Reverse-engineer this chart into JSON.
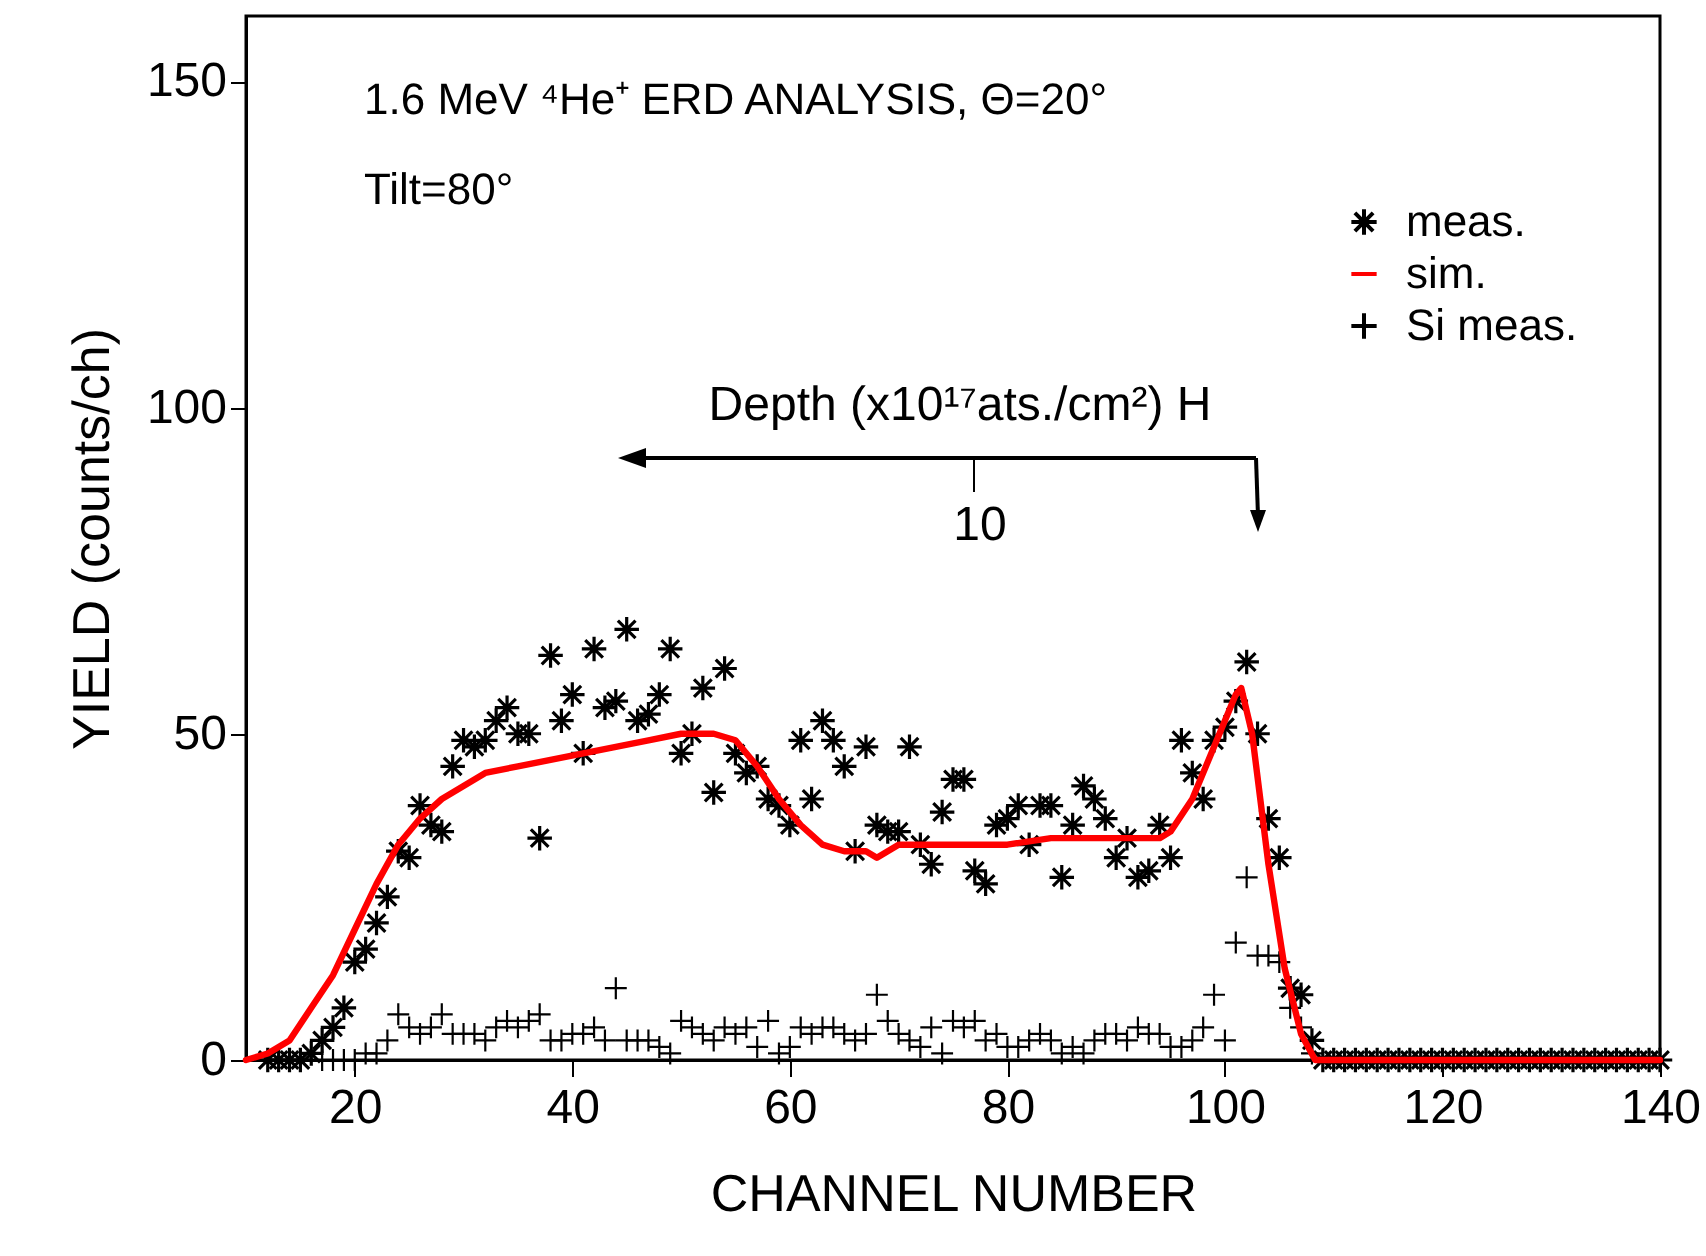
{
  "chart_data": {
    "type": "scatter",
    "xlabel": "CHANNEL NUMBER",
    "ylabel": "YIELD (counts/ch)",
    "annotations": [
      "1.6 MeV ⁴He⁺ ERD ANALYSIS,  Θ=20°",
      "Tilt=80°",
      "Depth (x10¹⁷ats./cm²) H",
      "10"
    ],
    "xlim": [
      10,
      140
    ],
    "xticks": [
      20,
      40,
      60,
      80,
      100,
      120,
      140
    ],
    "ylim": [
      0,
      160
    ],
    "yticks": [
      0,
      50,
      100,
      150
    ],
    "grid": false,
    "legend": "top right",
    "x": [
      12,
      13,
      14,
      15,
      16,
      17,
      18,
      19,
      20,
      21,
      22,
      23,
      24,
      25,
      26,
      27,
      28,
      29,
      30,
      31,
      32,
      33,
      34,
      35,
      36,
      37,
      38,
      39,
      40,
      41,
      42,
      43,
      44,
      45,
      46,
      47,
      48,
      49,
      50,
      51,
      52,
      53,
      54,
      55,
      56,
      57,
      58,
      59,
      60,
      61,
      62,
      63,
      64,
      65,
      66,
      67,
      68,
      69,
      70,
      71,
      72,
      73,
      74,
      75,
      76,
      77,
      78,
      79,
      80,
      81,
      82,
      83,
      84,
      85,
      86,
      87,
      88,
      89,
      90,
      91,
      92,
      93,
      94,
      95,
      96,
      97,
      98,
      99,
      100,
      101,
      102,
      103,
      104,
      105,
      106,
      107,
      108,
      109,
      110,
      111,
      112,
      113,
      114,
      115,
      116,
      117,
      118,
      119,
      120,
      121,
      122,
      123,
      124,
      125,
      126,
      127,
      128,
      129,
      130,
      131,
      132,
      133,
      134,
      135,
      136,
      137,
      138,
      139,
      140
    ],
    "series": [
      {
        "name": "meas.",
        "type": "scatter",
        "marker": "cross",
        "color": "#000000",
        "values": [
          0,
          0,
          0,
          0,
          1,
          3,
          5,
          8,
          15,
          17,
          21,
          25,
          32,
          31,
          39,
          36,
          35,
          45,
          49,
          48,
          49,
          52,
          54,
          50,
          50,
          34,
          62,
          52,
          56,
          47,
          63,
          54,
          55,
          66,
          52,
          53,
          56,
          63,
          47,
          50,
          57,
          41,
          60,
          47,
          44,
          45,
          40,
          39,
          36,
          49,
          40,
          52,
          49,
          45,
          32,
          48,
          36,
          35,
          35,
          48,
          33,
          30,
          38,
          43,
          43,
          29,
          27,
          36,
          37,
          39,
          33,
          39,
          39,
          28,
          36,
          42,
          40,
          37,
          31,
          34,
          28,
          29,
          36,
          31,
          49,
          44,
          40,
          49,
          51,
          55,
          61,
          50,
          37,
          31,
          11,
          10,
          3,
          0,
          0,
          0,
          0,
          0,
          0,
          0,
          0,
          0,
          0,
          0,
          0,
          0,
          0,
          0,
          0,
          0,
          0,
          0,
          0,
          0,
          0,
          0,
          0,
          0,
          0,
          0,
          0,
          0,
          0,
          0,
          0
        ]
      },
      {
        "name": "sim.",
        "type": "line",
        "color": "#ff0000",
        "x": [
          10,
          12,
          14,
          16,
          18,
          20,
          22,
          24,
          26,
          28,
          30,
          32,
          35,
          38,
          41,
          44,
          47,
          50,
          53,
          55,
          57,
          59,
          61,
          63,
          65,
          67,
          68,
          69,
          70,
          75,
          80,
          84,
          88,
          92,
          94,
          95,
          97,
          99,
          101,
          101.5,
          102.5,
          104,
          105.5,
          107,
          108.3,
          110,
          120,
          130,
          140
        ],
        "values": [
          0,
          1,
          3,
          8,
          13,
          20,
          27,
          33,
          37,
          40,
          42,
          44,
          45,
          46,
          47,
          48,
          49,
          50,
          50,
          49,
          45,
          40,
          36,
          33,
          32,
          32,
          31,
          32,
          33,
          33,
          33,
          34,
          34,
          34,
          34,
          35,
          40,
          48,
          56,
          57,
          50,
          30,
          14,
          4,
          0,
          0,
          0,
          0,
          0
        ]
      },
      {
        "name": "Si meas.",
        "type": "scatter",
        "marker": "cross",
        "color": "#000000",
        "x": [
          17,
          18,
          19,
          20,
          21,
          22,
          23,
          24,
          25,
          26,
          27,
          28,
          29,
          30,
          31,
          32,
          33,
          34,
          35,
          36,
          37,
          38,
          39,
          40,
          41,
          42,
          43,
          44,
          45,
          46,
          47,
          48,
          49,
          50,
          51,
          52,
          53,
          54,
          55,
          56,
          57,
          58,
          59,
          60,
          61,
          62,
          63,
          64,
          65,
          66,
          67,
          68,
          69,
          70,
          71,
          72,
          73,
          74,
          75,
          76,
          77,
          78,
          79,
          80,
          81,
          82,
          83,
          84,
          85,
          86,
          87,
          88,
          89,
          90,
          91,
          92,
          93,
          94,
          95,
          96,
          97,
          98,
          99,
          100,
          101,
          102,
          103,
          104,
          105,
          106,
          107,
          108
        ],
        "values": [
          0,
          0,
          0,
          0,
          1,
          1,
          3,
          7,
          5,
          4,
          5,
          7,
          4,
          4,
          4,
          3,
          5,
          6,
          5,
          6,
          7,
          3,
          3,
          4,
          4,
          5,
          3,
          11,
          3,
          3,
          3,
          2,
          1,
          6,
          5,
          4,
          3,
          5,
          4,
          5,
          2,
          6,
          1,
          2,
          5,
          4,
          5,
          5,
          4,
          3,
          4,
          10,
          6,
          4,
          3,
          2,
          5,
          1,
          6,
          5,
          6,
          3,
          4,
          2,
          2,
          3,
          4,
          3,
          1,
          2,
          1,
          3,
          4,
          4,
          3,
          5,
          4,
          4,
          2,
          2,
          3,
          5,
          10,
          3,
          18,
          28,
          16,
          16,
          15,
          8,
          5,
          1
        ]
      }
    ]
  }
}
